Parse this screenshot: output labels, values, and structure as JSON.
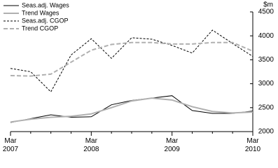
{
  "chart_data": {
    "type": "line",
    "ylabel": "$m",
    "categories": [
      "Mar 2007",
      null,
      null,
      null,
      "Mar 2008",
      null,
      null,
      null,
      "Mar 2009",
      null,
      null,
      null,
      "Mar 2010"
    ],
    "series": [
      {
        "name": "Seas.adj. Wages",
        "color": "#000000",
        "dash": "solid",
        "values": [
          2190,
          2270,
          2350,
          2300,
          2310,
          2560,
          2650,
          2700,
          2750,
          2440,
          2380,
          2380,
          2430
        ]
      },
      {
        "name": "Trend Wages",
        "color": "#b0b0b0",
        "dash": "solid",
        "values": [
          2200,
          2260,
          2300,
          2320,
          2370,
          2500,
          2640,
          2700,
          2660,
          2520,
          2420,
          2390,
          2410
        ]
      },
      {
        "name": "Seas.adj. CGOP",
        "color": "#000000",
        "dash": "dashed",
        "values": [
          3320,
          3250,
          2830,
          3600,
          3940,
          3530,
          3960,
          3930,
          3800,
          3640,
          4120,
          3840,
          3570
        ]
      },
      {
        "name": "Trend CGOP",
        "color": "#b0b0b0",
        "dash": "dashed",
        "values": [
          3170,
          3160,
          3200,
          3450,
          3700,
          3820,
          3860,
          3860,
          3830,
          3830,
          3860,
          3860,
          3680
        ]
      }
    ],
    "ylim": [
      2000,
      4500
    ],
    "yticks": [
      2000,
      2500,
      3000,
      3500,
      4000,
      4500
    ],
    "legend": "top-left"
  }
}
